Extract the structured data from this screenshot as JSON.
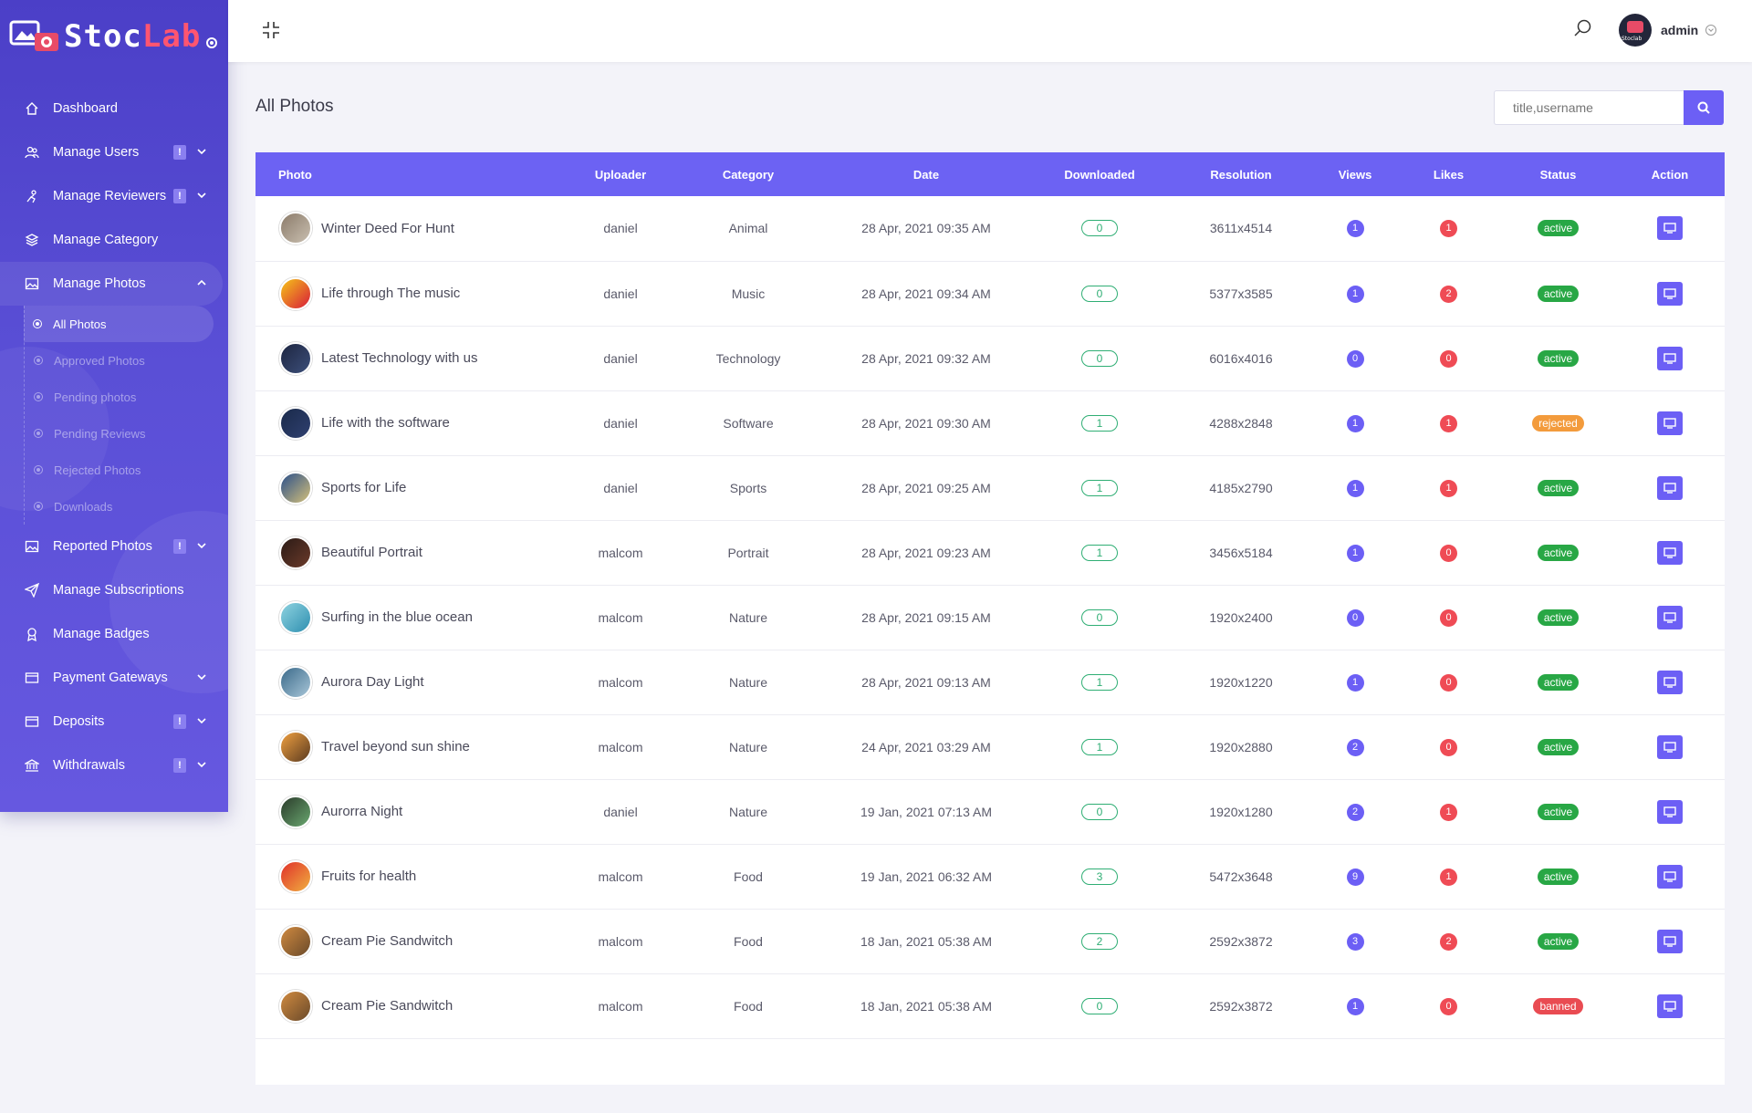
{
  "brand": {
    "name_a": "Stoc",
    "name_b": "Lab"
  },
  "sidebar": {
    "items": [
      {
        "label": "Dashboard",
        "icon": "home-icon"
      },
      {
        "label": "Manage Users",
        "icon": "users-icon",
        "badge": "!"
      },
      {
        "label": "Manage Reviewers",
        "icon": "reviewer-icon",
        "badge": "!"
      },
      {
        "label": "Manage Category",
        "icon": "layers-icon"
      },
      {
        "label": "Manage Photos",
        "icon": "image-icon"
      },
      {
        "label": "Reported Photos",
        "icon": "image-icon",
        "badge": "!"
      },
      {
        "label": "Manage Subscriptions",
        "icon": "paper-plane-icon"
      },
      {
        "label": "Manage Badges",
        "icon": "badge-icon"
      },
      {
        "label": "Payment Gateways",
        "icon": "credit-card-icon"
      },
      {
        "label": "Deposits",
        "icon": "credit-card-icon",
        "badge": "!"
      },
      {
        "label": "Withdrawals",
        "icon": "bank-icon",
        "badge": "!"
      }
    ],
    "photo_sub": [
      "All Photos",
      "Approved Photos",
      "Pending photos",
      "Pending Reviews",
      "Rejected Photos",
      "Downloads"
    ]
  },
  "topbar": {
    "username": "admin"
  },
  "main": {
    "title": "All Photos",
    "search_placeholder": "title,username"
  },
  "table": {
    "headers": [
      "Photo",
      "Uploader",
      "Category",
      "Date",
      "Downloaded",
      "Resolution",
      "Views",
      "Likes",
      "Status",
      "Action"
    ],
    "rows": [
      {
        "title": "Winter Deed For Hunt",
        "uploader": "daniel",
        "category": "Animal",
        "date": "28 Apr, 2021 09:35 AM",
        "downloaded": "0",
        "resolution": "3611x4514",
        "views": "1",
        "likes": "1",
        "status": "active",
        "thumb": [
          "#8b7b6a",
          "#c9bfb0"
        ]
      },
      {
        "title": "Life through The music",
        "uploader": "daniel",
        "category": "Music",
        "date": "28 Apr, 2021 09:34 AM",
        "downloaded": "0",
        "resolution": "5377x3585",
        "views": "1",
        "likes": "2",
        "status": "active",
        "thumb": [
          "#f5c518",
          "#d81b3a"
        ]
      },
      {
        "title": "Latest Technology with us",
        "uploader": "daniel",
        "category": "Technology",
        "date": "28 Apr, 2021 09:32 AM",
        "downloaded": "0",
        "resolution": "6016x4016",
        "views": "0",
        "likes": "0",
        "status": "active",
        "thumb": [
          "#1d2540",
          "#3c4f7a"
        ]
      },
      {
        "title": "Life with the software",
        "uploader": "daniel",
        "category": "Software",
        "date": "28 Apr, 2021 09:30 AM",
        "downloaded": "1",
        "resolution": "4288x2848",
        "views": "1",
        "likes": "1",
        "status": "rejected",
        "thumb": [
          "#1a2a4a",
          "#2f4070"
        ]
      },
      {
        "title": "Sports for Life",
        "uploader": "daniel",
        "category": "Sports",
        "date": "28 Apr, 2021 09:25 AM",
        "downloaded": "1",
        "resolution": "4185x2790",
        "views": "1",
        "likes": "1",
        "status": "active",
        "thumb": [
          "#2a4f8a",
          "#d4c07a"
        ]
      },
      {
        "title": "Beautiful Portrait",
        "uploader": "malcom",
        "category": "Portrait",
        "date": "28 Apr, 2021 09:23 AM",
        "downloaded": "1",
        "resolution": "3456x5184",
        "views": "1",
        "likes": "0",
        "status": "active",
        "thumb": [
          "#2b1b16",
          "#6b3a2a"
        ]
      },
      {
        "title": "Surfing in the blue ocean",
        "uploader": "malcom",
        "category": "Nature",
        "date": "28 Apr, 2021 09:15 AM",
        "downloaded": "0",
        "resolution": "1920x2400",
        "views": "0",
        "likes": "0",
        "status": "active",
        "thumb": [
          "#8fd3e0",
          "#2e8fb0"
        ]
      },
      {
        "title": "Aurora Day Light",
        "uploader": "malcom",
        "category": "Nature",
        "date": "28 Apr, 2021 09:13 AM",
        "downloaded": "1",
        "resolution": "1920x1220",
        "views": "1",
        "likes": "0",
        "status": "active",
        "thumb": [
          "#3b6a8a",
          "#a8c6d8"
        ]
      },
      {
        "title": "Travel beyond sun shine",
        "uploader": "malcom",
        "category": "Nature",
        "date": "24 Apr, 2021 03:29 AM",
        "downloaded": "1",
        "resolution": "1920x2880",
        "views": "2",
        "likes": "0",
        "status": "active",
        "thumb": [
          "#f0a040",
          "#5a3a20"
        ]
      },
      {
        "title": "Aurorra Night",
        "uploader": "daniel",
        "category": "Nature",
        "date": "19 Jan, 2021 07:13 AM",
        "downloaded": "0",
        "resolution": "1920x1280",
        "views": "2",
        "likes": "1",
        "status": "active",
        "thumb": [
          "#2a3a2a",
          "#6aa870"
        ]
      },
      {
        "title": "Fruits for health",
        "uploader": "malcom",
        "category": "Food",
        "date": "19 Jan, 2021 06:32 AM",
        "downloaded": "3",
        "resolution": "5472x3648",
        "views": "9",
        "likes": "1",
        "status": "active",
        "thumb": [
          "#e0302a",
          "#f0b040"
        ]
      },
      {
        "title": "Cream Pie Sandwitch",
        "uploader": "malcom",
        "category": "Food",
        "date": "18 Jan, 2021 05:38 AM",
        "downloaded": "2",
        "resolution": "2592x3872",
        "views": "3",
        "likes": "2",
        "status": "active",
        "thumb": [
          "#d08a40",
          "#6a4a2a"
        ]
      },
      {
        "title": "Cream Pie Sandwitch",
        "uploader": "malcom",
        "category": "Food",
        "date": "18 Jan, 2021 05:38 AM",
        "downloaded": "0",
        "resolution": "2592x3872",
        "views": "1",
        "likes": "0",
        "status": "banned",
        "thumb": [
          "#d08a40",
          "#6a4a2a"
        ]
      }
    ]
  },
  "colors": {
    "accent": "#6c5ff5",
    "sidebar": "#5a4fd6",
    "active": "#28a745",
    "rejected": "#f39b3c",
    "banned": "#e94b52"
  }
}
